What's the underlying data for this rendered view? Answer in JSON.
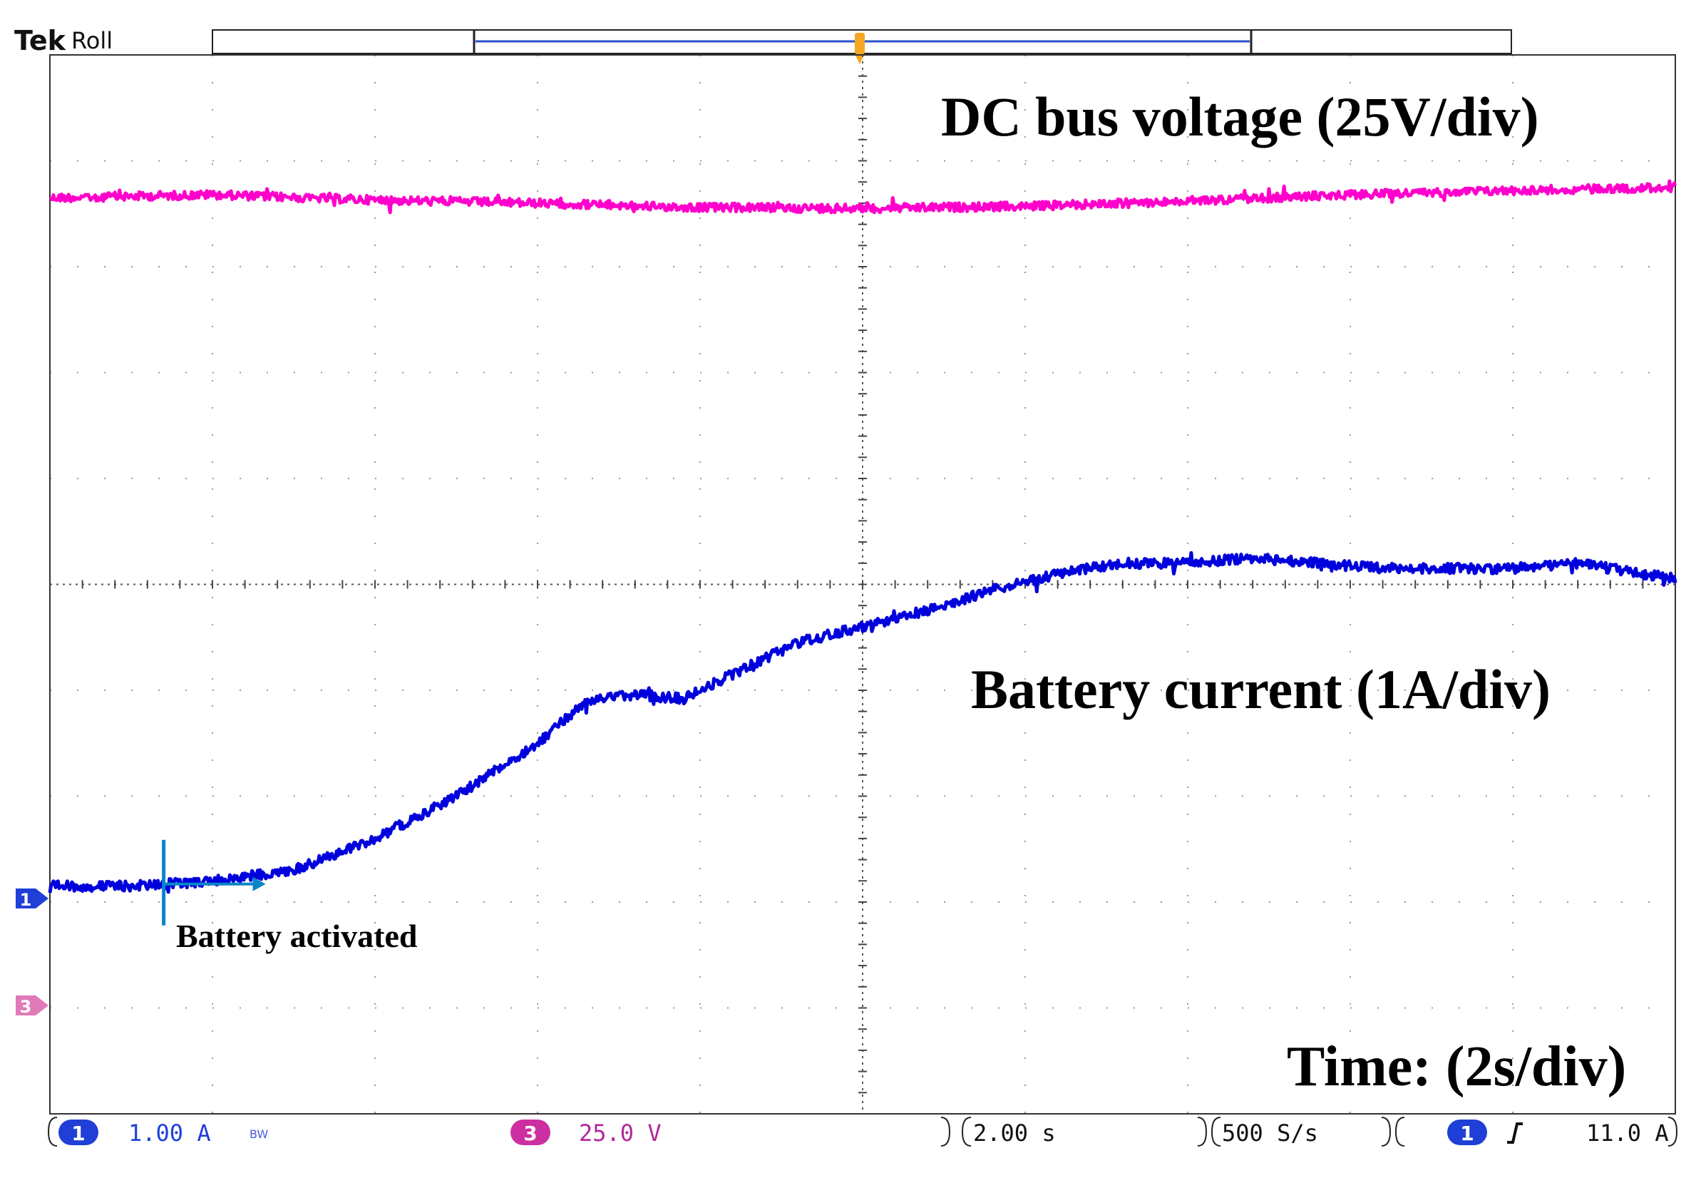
{
  "header": {
    "brand": "Tek",
    "mode": "Roll"
  },
  "colors": {
    "voltage_trace": "#ff00cc",
    "current_trace": "#0000dd",
    "marker": "#0a85c8",
    "trigger": "#f5a623",
    "ch1_badge": "#1f3fd6",
    "ch3_badge": "#cc2fa0",
    "ch3_text": "#b0289a"
  },
  "chart_data": {
    "type": "line",
    "grid": true,
    "x_divisions": 10,
    "y_divisions": 10,
    "x_unit_per_div": "2.00 s",
    "series": [
      {
        "name": "DC bus voltage (25V/div)",
        "channel": "3",
        "description_divs": "trace level in divisions above bottom graticule line",
        "x": [
          0,
          1,
          2,
          3,
          4,
          5,
          6,
          7,
          8,
          9,
          10
        ],
        "y": [
          8.65,
          8.68,
          8.63,
          8.6,
          8.56,
          8.55,
          8.57,
          8.62,
          8.68,
          8.72,
          8.75
        ]
      },
      {
        "name": "Battery current (1A/div)",
        "channel": "1",
        "x": [
          0,
          0.5,
          0.7,
          1.0,
          1.5,
          2.0,
          2.5,
          3.0,
          3.3,
          3.6,
          3.9,
          4.2,
          4.6,
          5.0,
          5.4,
          5.8,
          6.2,
          6.6,
          7.0,
          7.4,
          7.8,
          8.2,
          8.6,
          9.0,
          9.4,
          9.8,
          10
        ],
        "y": [
          2.15,
          2.15,
          2.17,
          2.2,
          2.3,
          2.6,
          3.0,
          3.5,
          3.9,
          3.96,
          3.92,
          4.15,
          4.45,
          4.6,
          4.75,
          4.95,
          5.1,
          5.2,
          5.2,
          5.25,
          5.2,
          5.15,
          5.15,
          5.15,
          5.2,
          5.1,
          5.05
        ]
      }
    ],
    "annotations": [
      {
        "text": "DC bus voltage (25V/div)"
      },
      {
        "text": "Battery current (1A/div)"
      },
      {
        "text": "Battery activated",
        "x": 0.7
      },
      {
        "text": "Time: (2s/div)"
      }
    ]
  },
  "status_bar": {
    "ch1_num": "1",
    "ch1_scale": "1.00 A",
    "ch1_bw": "BW",
    "ch3_num": "3",
    "ch3_scale": "25.0 V",
    "timebase": "2.00 s",
    "sample_rate": "500 S/s",
    "trigger_source": "1",
    "trigger_level": "11.0 A"
  },
  "markers": {
    "ch1_ground": "1",
    "ch3_ground": "3"
  }
}
